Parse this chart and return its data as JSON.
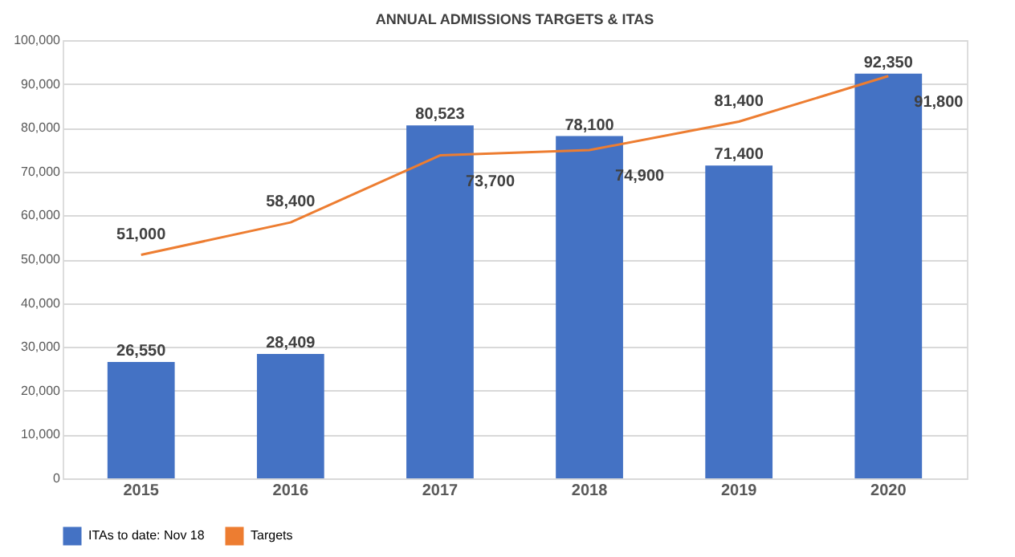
{
  "chart_data": {
    "type": "bar",
    "title": "ANNUAL ADMISSIONS TARGETS & ITAS",
    "categories": [
      "2015",
      "2016",
      "2017",
      "2018",
      "2019",
      "2020"
    ],
    "series": [
      {
        "name": "ITAs to date: Nov 18",
        "color": "#4472c4",
        "values": [
          26550,
          28409,
          80523,
          78100,
          71400,
          92350
        ],
        "value_labels": [
          "26,550",
          "28,409",
          "80,523",
          "78,100",
          "71,400",
          "92,350"
        ]
      },
      {
        "name": "Targets",
        "type": "line",
        "color": "#ed7d31",
        "values": [
          51000,
          58400,
          73700,
          74900,
          81400,
          91800
        ],
        "value_labels": [
          "51,000",
          "58,400",
          "73,700",
          "74,900",
          "81,400",
          "91,800"
        ]
      }
    ],
    "ylim": [
      0,
      100000
    ],
    "yticks": [
      0,
      {
        "value": 10000,
        "label": "10,000"
      },
      {
        "value": 20000,
        "label": "20,000"
      },
      {
        "value": 30000,
        "label": "30,000"
      },
      {
        "value": 40000,
        "label": "40,000"
      },
      {
        "value": 50000,
        "label": "50,000"
      },
      {
        "value": 60000,
        "label": "60,000"
      },
      {
        "value": 70000,
        "label": "70,000"
      },
      {
        "value": 80000,
        "label": "80,000"
      },
      {
        "value": 90000,
        "label": "90,000"
      },
      {
        "value": 100000,
        "label": "100,000"
      }
    ],
    "grid": "y",
    "legend": "bottom",
    "marker": "none",
    "line_style": "solid"
  }
}
